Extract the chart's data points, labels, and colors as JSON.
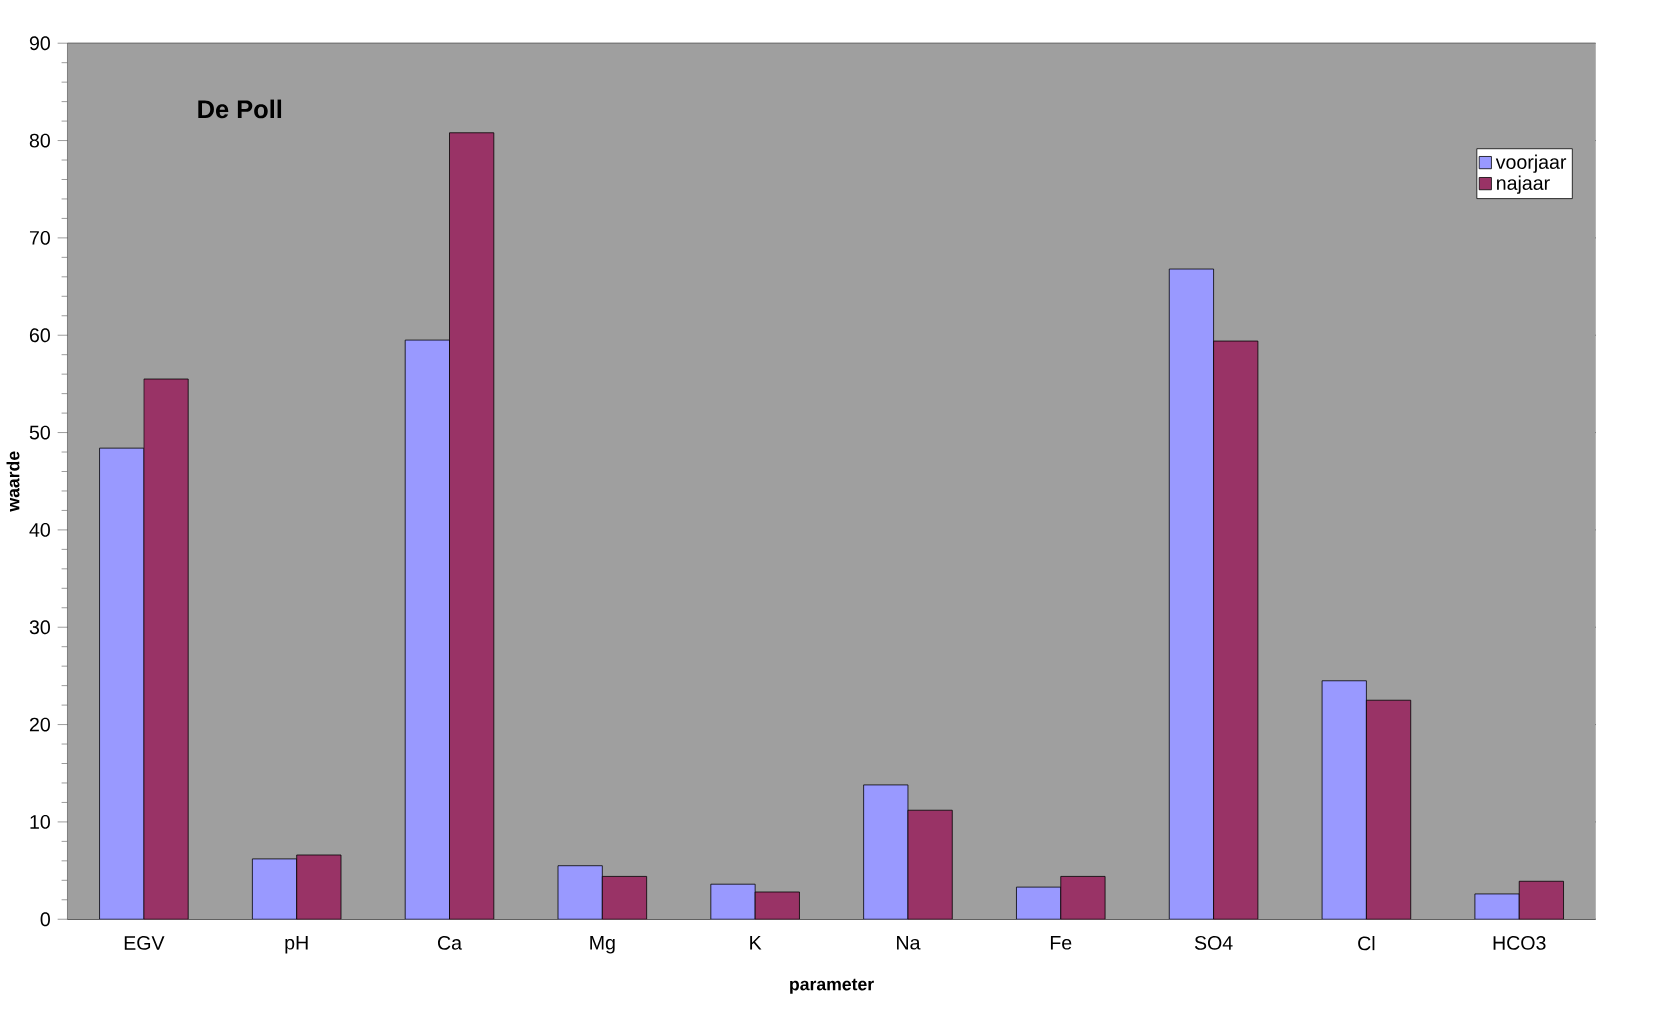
{
  "chart_data": {
    "type": "bar",
    "title": "De Poll",
    "xlabel": "parameter",
    "ylabel": "waarde",
    "categories": [
      "EGV",
      "pH",
      "Ca",
      "Mg",
      "K",
      "Na",
      "Fe",
      "SO4",
      "Cl",
      "HCO3"
    ],
    "series": [
      {
        "name": "voorjaar",
        "color": "#9999ff",
        "values": [
          48.4,
          6.2,
          59.5,
          5.5,
          3.6,
          13.8,
          3.3,
          66.8,
          24.5,
          2.6
        ]
      },
      {
        "name": "najaar",
        "color": "#993366",
        "values": [
          55.5,
          6.6,
          80.8,
          4.4,
          2.8,
          11.2,
          4.4,
          59.4,
          22.5,
          3.9
        ]
      }
    ],
    "ylim": [
      0,
      90
    ],
    "yticks": [
      0,
      10,
      20,
      30,
      40,
      50,
      60,
      70,
      80,
      90
    ],
    "grid": "y",
    "legend": "top right"
  }
}
